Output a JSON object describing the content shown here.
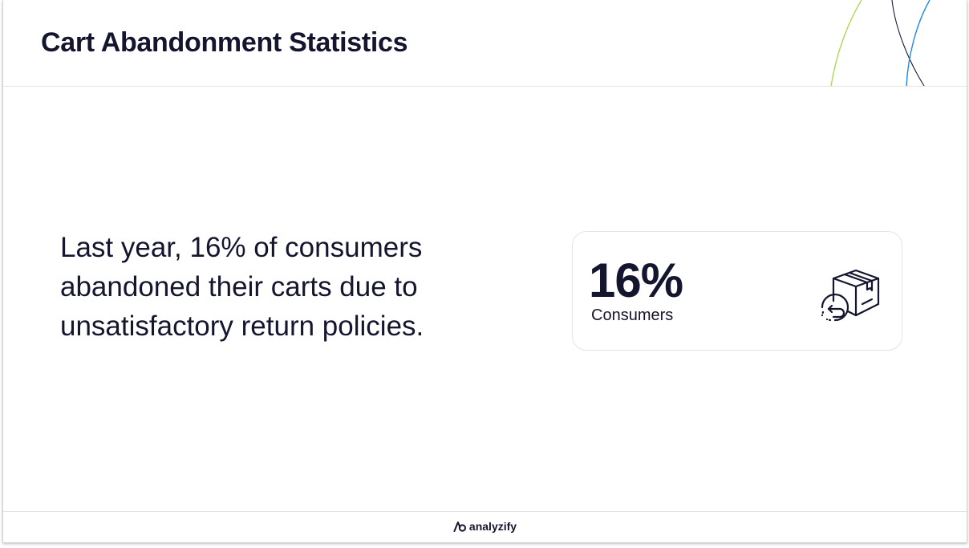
{
  "header": {
    "title": "Cart Abandonment Statistics"
  },
  "main": {
    "statement": "Last year, 16% of consumers abandoned their carts due to unsatisfactory return policies."
  },
  "stat_card": {
    "value": "16%",
    "label": "Consumers",
    "icon": "package-return-icon"
  },
  "footer": {
    "brand_name": "analyzify",
    "brand_icon": "analyzify-logo-icon"
  },
  "colors": {
    "text": "#14152e",
    "accent_green": "#a8d64a",
    "accent_blue": "#1e88e5",
    "accent_dark": "#1b1b3a"
  }
}
